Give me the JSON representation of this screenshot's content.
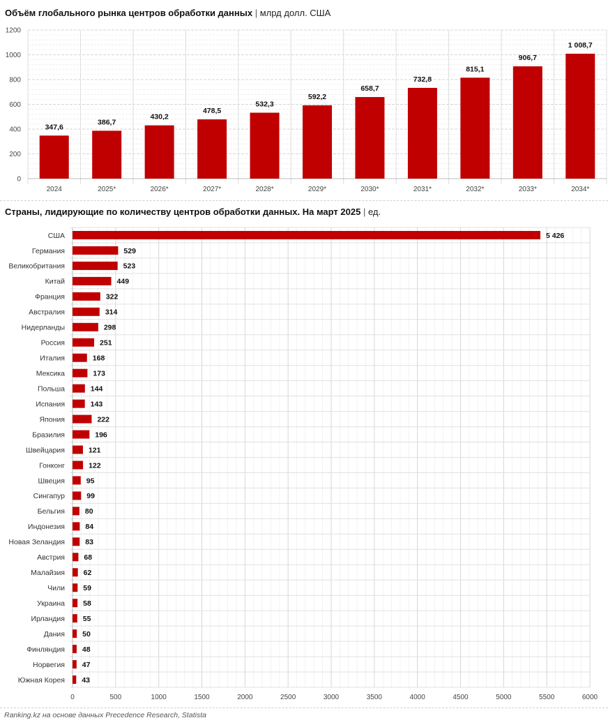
{
  "chart_data": [
    {
      "type": "bar",
      "orientation": "vertical",
      "title": "Объём глобального рынка центров обработки данных",
      "unit": "млрд долл. США",
      "categories": [
        "2024",
        "2025*",
        "2026*",
        "2027*",
        "2028*",
        "2029*",
        "2030*",
        "2031*",
        "2032*",
        "2033*",
        "2034*"
      ],
      "values": [
        347.6,
        386.7,
        430.2,
        478.5,
        532.3,
        592.2,
        658.7,
        732.8,
        815.1,
        906.7,
        1008.7
      ],
      "value_labels": [
        "347,6",
        "386,7",
        "430,2",
        "478,5",
        "532,3",
        "592,2",
        "658,7",
        "732,8",
        "815,1",
        "906,7",
        "1 008,7"
      ],
      "ylim": [
        0,
        1200
      ],
      "yticks": [
        0,
        200,
        400,
        600,
        800,
        1000,
        1200
      ],
      "grid": true,
      "color": "#c00000"
    },
    {
      "type": "bar",
      "orientation": "horizontal",
      "title": "Страны, лидирующие по количеству центров обработки данных. На март 2025",
      "unit": "ед.",
      "categories": [
        "США",
        "Германия",
        "Великобритания",
        "Китай",
        "Франция",
        "Австралия",
        "Нидерланды",
        "Россия",
        "Италия",
        "Мексика",
        "Польша",
        "Испания",
        "Япония",
        "Бразилия",
        "Швейцария",
        "Гонконг",
        "Швеция",
        "Сингапур",
        "Бельгия",
        "Индонезия",
        "Новая Зеландия",
        "Австрия",
        "Малайзия",
        "Чили",
        "Украина",
        "Ирландия",
        "Дания",
        "Финляндия",
        "Норвегия",
        "Южная Корея"
      ],
      "values": [
        5426,
        529,
        523,
        449,
        322,
        314,
        298,
        251,
        168,
        173,
        144,
        143,
        222,
        196,
        121,
        122,
        95,
        99,
        80,
        84,
        83,
        68,
        62,
        59,
        58,
        55,
        50,
        48,
        47,
        43
      ],
      "value_labels": [
        "5 426",
        "529",
        "523",
        "449",
        "322",
        "314",
        "298",
        "251",
        "168",
        "173",
        "144",
        "143",
        "222",
        "196",
        "121",
        "122",
        "95",
        "99",
        "80",
        "84",
        "83",
        "68",
        "62",
        "59",
        "58",
        "55",
        "50",
        "48",
        "47",
        "43"
      ],
      "xlim": [
        0,
        6000
      ],
      "xticks": [
        0,
        500,
        1000,
        1500,
        2000,
        2500,
        3000,
        3500,
        4000,
        4500,
        5000,
        5500,
        6000
      ],
      "grid": true,
      "color": "#c00000"
    }
  ],
  "source": "Ranking.kz на основе данных Precedence Research, Statista"
}
